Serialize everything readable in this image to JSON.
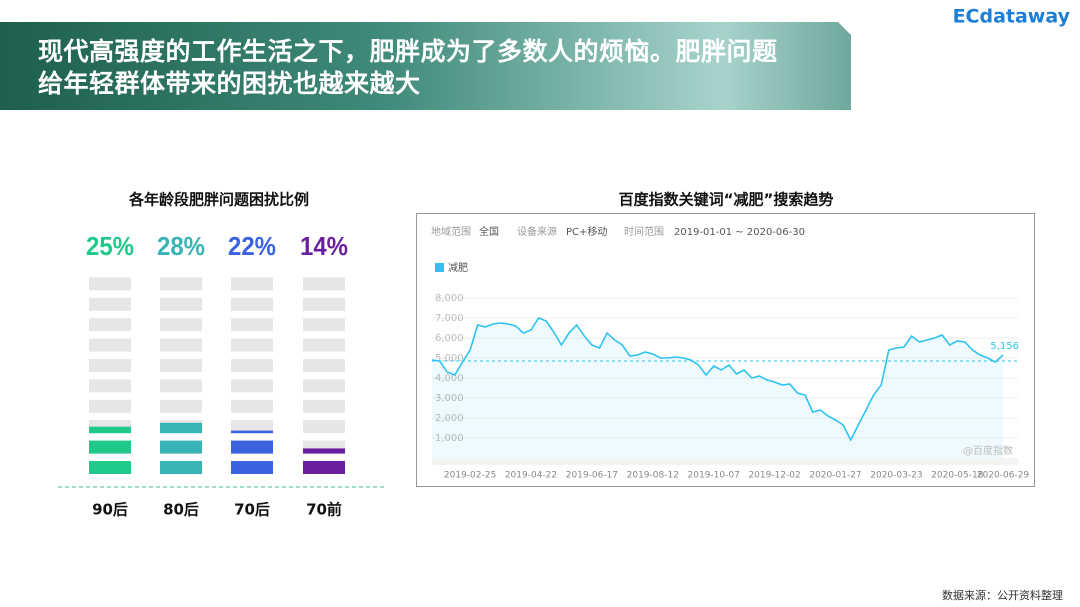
{
  "header": {
    "title": "现代高强度的工作生活之下，肥胖成为了多数人的烦恼。肥胖问题给年轻群体带来的困扰也越来越大",
    "logo": "ECdataway"
  },
  "source": "数据来源：公开资料整理",
  "chart_data": [
    {
      "type": "pictogram",
      "title": "各年龄段肥胖问题困扰比例",
      "categories": [
        "90后",
        "80后",
        "70后",
        "70前"
      ],
      "values": [
        25,
        28,
        22,
        14
      ],
      "value_labels": [
        "25%",
        "28%",
        "22%",
        "14%"
      ],
      "colors": [
        "#1fc98a",
        "#38b3b6",
        "#3b62e0",
        "#6a1f9e"
      ],
      "ylim": [
        0,
        100
      ]
    },
    {
      "type": "line",
      "title": "百度指数关键词“减肥”搜索趋势",
      "filters": [
        {
          "label": "地域范围",
          "value": "全国"
        },
        {
          "label": "设备来源",
          "value": "PC+移动"
        },
        {
          "label": "时间范围",
          "value": "2019-01-01 ~ 2020-06-30"
        }
      ],
      "x": [
        "2019-01-21",
        "2019-01-28",
        "2019-02-04",
        "2019-02-11",
        "2019-02-18",
        "2019-02-25",
        "2019-03-04",
        "2019-03-11",
        "2019-03-18",
        "2019-03-25",
        "2019-04-01",
        "2019-04-08",
        "2019-04-15",
        "2019-04-22",
        "2019-04-29",
        "2019-05-06",
        "2019-05-13",
        "2019-05-20",
        "2019-05-27",
        "2019-06-03",
        "2019-06-10",
        "2019-06-17",
        "2019-06-24",
        "2019-07-01",
        "2019-07-08",
        "2019-07-15",
        "2019-07-22",
        "2019-07-29",
        "2019-08-05",
        "2019-08-12",
        "2019-08-19",
        "2019-08-26",
        "2019-09-02",
        "2019-09-09",
        "2019-09-16",
        "2019-09-23",
        "2019-09-30",
        "2019-10-07",
        "2019-10-14",
        "2019-10-21",
        "2019-10-28",
        "2019-11-04",
        "2019-11-11",
        "2019-11-18",
        "2019-11-25",
        "2019-12-02",
        "2019-12-09",
        "2019-12-16",
        "2019-12-23",
        "2019-12-30",
        "2020-01-06",
        "2020-01-13",
        "2020-01-20",
        "2020-01-27",
        "2020-02-03",
        "2020-02-10",
        "2020-02-17",
        "2020-02-24",
        "2020-03-02",
        "2020-03-09",
        "2020-03-16",
        "2020-03-23",
        "2020-03-30",
        "2020-04-06",
        "2020-04-13",
        "2020-04-20",
        "2020-04-27",
        "2020-05-04",
        "2020-05-11",
        "2020-05-18",
        "2020-05-25",
        "2020-06-01",
        "2020-06-08",
        "2020-06-15",
        "2020-06-22",
        "2020-06-29"
      ],
      "series": [
        {
          "name": "减肥",
          "color": "#2ec3ef",
          "values": [
            4900,
            4850,
            4300,
            4150,
            4800,
            5400,
            6650,
            6550,
            6700,
            6750,
            6700,
            6600,
            6250,
            6400,
            7000,
            6850,
            6300,
            5650,
            6250,
            6650,
            6100,
            5650,
            5500,
            6250,
            5900,
            5650,
            5100,
            5150,
            5300,
            5200,
            5000,
            5000,
            5050,
            5000,
            4900,
            4650,
            4150,
            4600,
            4400,
            4650,
            4200,
            4400,
            4000,
            4100,
            3900,
            3800,
            3650,
            3700,
            3250,
            3150,
            2300,
            2400,
            2100,
            1900,
            1650,
            900,
            1650,
            2400,
            3150,
            3650,
            5400,
            5500,
            5550,
            6100,
            5800,
            5900,
            6000,
            6150,
            5650,
            5850,
            5800,
            5400,
            5150,
            5000,
            4800,
            5156
          ],
          "value_labels": [
            null,
            null,
            null,
            null,
            null,
            null,
            null,
            null,
            null,
            null,
            null,
            null,
            null,
            null,
            null,
            null,
            null,
            null,
            null,
            null,
            null,
            null,
            null,
            null,
            null,
            null,
            null,
            null,
            null,
            null,
            null,
            null,
            null,
            null,
            null,
            null,
            null,
            null,
            null,
            null,
            null,
            null,
            null,
            null,
            null,
            null,
            null,
            null,
            null,
            null,
            null,
            null,
            null,
            null,
            null,
            null,
            null,
            null,
            null,
            null,
            null,
            null,
            null,
            null,
            null,
            null,
            null,
            null,
            null,
            null,
            null,
            null,
            null,
            null,
            null,
            "5,156"
          ]
        }
      ],
      "xlim": [
        "2019-01-21",
        "2020-06-29"
      ],
      "xticks": [
        "2019-02-25",
        "2019-04-22",
        "2019-06-17",
        "2019-08-12",
        "2019-10-07",
        "2019-12-02",
        "2020-01-27",
        "2020-03-23",
        "2020-05-18",
        "2020-06-29"
      ],
      "ylim": [
        0,
        8000
      ],
      "yticks": [
        {
          "value": 1000,
          "label": "1,000"
        },
        {
          "value": 2000,
          "label": "2,000"
        },
        {
          "value": 3000,
          "label": "3,000"
        },
        {
          "value": 4000,
          "label": "4,000"
        },
        {
          "value": 5000,
          "label": "5,000"
        },
        {
          "value": 6000,
          "label": "6,000"
        },
        {
          "value": 7000,
          "label": "7,000"
        },
        {
          "value": 8000,
          "label": "8,000"
        }
      ],
      "reference_line": 4850,
      "watermark": "@百度指数",
      "grid": true
    }
  ]
}
